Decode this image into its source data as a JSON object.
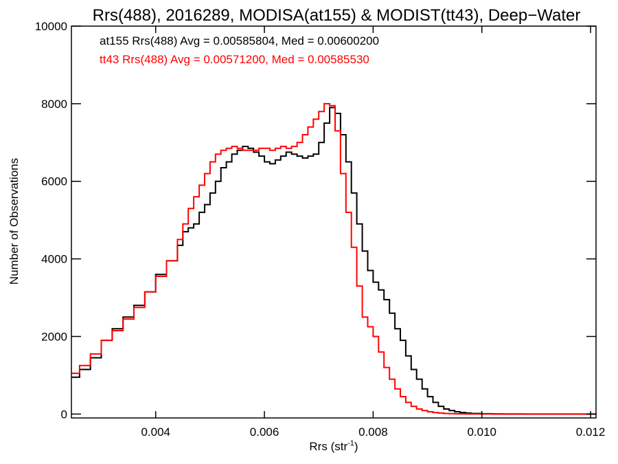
{
  "chart_data": {
    "type": "line",
    "step": true,
    "title": "Rrs(488), 2016289, MODISA(at155) & MODIST(tt43), Deep−Water",
    "xlabel": "Rrs (str",
    "xlabel_sup": "-1",
    "xlabel_close": ")",
    "ylabel": "Number of Observations",
    "xlim": [
      0.00245,
      0.0121
    ],
    "ylim": [
      -100,
      10000
    ],
    "grid": false,
    "x_ticks": [
      {
        "value": 0.004,
        "label": "0.004"
      },
      {
        "value": 0.006,
        "label": "0.006"
      },
      {
        "value": 0.008,
        "label": "0.008"
      },
      {
        "value": 0.01,
        "label": "0.010"
      },
      {
        "value": 0.012,
        "label": "0.012"
      }
    ],
    "y_ticks": [
      {
        "value": 0,
        "label": "0"
      },
      {
        "value": 2000,
        "label": "2000"
      },
      {
        "value": 4000,
        "label": "4000"
      },
      {
        "value": 6000,
        "label": "6000"
      },
      {
        "value": 8000,
        "label": "8000"
      },
      {
        "value": 10000,
        "label": "10000"
      }
    ],
    "annotations": [
      {
        "text": "at155 Rrs(488) Avg = 0.00585804, Med = 0.00600200",
        "color": "#000000"
      },
      {
        "text": "tt43 Rrs(488) Avg = 0.00571200, Med = 0.00585530",
        "color": "#ff0000"
      }
    ],
    "series": [
      {
        "color": "#000000",
        "x": [
          0.00245,
          0.0026,
          0.0028,
          0.003,
          0.0032,
          0.0034,
          0.0036,
          0.0038,
          0.004,
          0.0042,
          0.0044,
          0.0045,
          0.0046,
          0.0047,
          0.0048,
          0.0049,
          0.005,
          0.0051,
          0.0052,
          0.0053,
          0.0054,
          0.0055,
          0.0056,
          0.0057,
          0.0058,
          0.0059,
          0.006,
          0.0061,
          0.0062,
          0.0063,
          0.0064,
          0.0065,
          0.0066,
          0.0067,
          0.0068,
          0.0069,
          0.007,
          0.0071,
          0.0072,
          0.0073,
          0.0074,
          0.0075,
          0.0076,
          0.0077,
          0.0078,
          0.0079,
          0.008,
          0.0081,
          0.0082,
          0.0083,
          0.0084,
          0.0085,
          0.0086,
          0.0087,
          0.0088,
          0.0089,
          0.009,
          0.0091,
          0.0092,
          0.0093,
          0.0094,
          0.0095,
          0.0096,
          0.0097,
          0.0098,
          0.01,
          0.0102,
          0.0104,
          0.0106,
          0.0108,
          0.011,
          0.0112,
          0.0114,
          0.0116,
          0.0118,
          0.0121
        ],
        "y": [
          950,
          1150,
          1450,
          1900,
          2200,
          2500,
          2800,
          3150,
          3600,
          3950,
          4350,
          4700,
          4800,
          4900,
          5200,
          5400,
          5700,
          6000,
          6350,
          6500,
          6700,
          6800,
          6900,
          6850,
          6750,
          6650,
          6500,
          6450,
          6550,
          6650,
          6750,
          6700,
          6650,
          6600,
          6650,
          6700,
          7000,
          7500,
          7900,
          7750,
          7200,
          6500,
          5700,
          4900,
          4200,
          3700,
          3400,
          3200,
          2950,
          2600,
          2200,
          1900,
          1500,
          1150,
          900,
          650,
          450,
          300,
          200,
          130,
          90,
          60,
          40,
          25,
          15,
          8,
          4,
          2,
          1,
          0,
          0,
          0,
          0,
          0,
          0,
          0
        ]
      },
      {
        "color": "#ff0000",
        "x": [
          0.00245,
          0.0026,
          0.0028,
          0.003,
          0.0032,
          0.0034,
          0.0036,
          0.0038,
          0.004,
          0.0042,
          0.0044,
          0.0045,
          0.0046,
          0.0047,
          0.0048,
          0.0049,
          0.005,
          0.0051,
          0.0052,
          0.0053,
          0.0054,
          0.0055,
          0.0056,
          0.0057,
          0.0058,
          0.0059,
          0.006,
          0.0061,
          0.0062,
          0.0063,
          0.0064,
          0.0065,
          0.0066,
          0.0067,
          0.0068,
          0.0069,
          0.007,
          0.0071,
          0.0072,
          0.0073,
          0.0074,
          0.0075,
          0.0076,
          0.0077,
          0.0078,
          0.0079,
          0.008,
          0.0081,
          0.0082,
          0.0083,
          0.0084,
          0.0085,
          0.0086,
          0.0087,
          0.0088,
          0.0089,
          0.009,
          0.0091,
          0.0092,
          0.0093,
          0.0094,
          0.0095,
          0.0096,
          0.0097,
          0.0098,
          0.01,
          0.0102,
          0.0104,
          0.0106,
          0.0108,
          0.011,
          0.0112,
          0.0114,
          0.0116,
          0.0118,
          0.0121
        ],
        "y": [
          1050,
          1250,
          1550,
          1900,
          2150,
          2450,
          2750,
          3150,
          3550,
          3950,
          4500,
          4900,
          5300,
          5600,
          5900,
          6200,
          6500,
          6700,
          6800,
          6850,
          6900,
          6850,
          6800,
          6800,
          6800,
          6850,
          6850,
          6800,
          6850,
          6900,
          6850,
          6900,
          7000,
          7200,
          7400,
          7600,
          7800,
          8000,
          7950,
          7300,
          6200,
          5200,
          4300,
          3300,
          2500,
          2250,
          2000,
          1600,
          1200,
          900,
          650,
          450,
          300,
          200,
          130,
          90,
          60,
          40,
          25,
          15,
          10,
          6,
          4,
          3,
          2,
          1,
          0,
          0,
          0,
          0,
          0,
          0,
          0,
          0,
          0,
          0
        ]
      }
    ]
  }
}
